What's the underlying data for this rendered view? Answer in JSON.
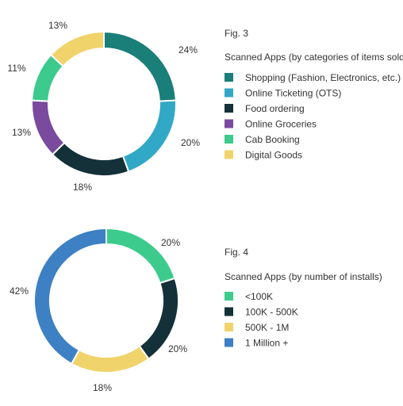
{
  "chart_data": [
    {
      "type": "pie",
      "figure_label": "Fig. 3",
      "title": "Scanned Apps (by categories of items sold)",
      "categories": [
        "Shopping (Fashion, Electronics, etc.)",
        "Online Ticketing (OTS)",
        "Food ordering",
        "Online Groceries",
        "Cab Booking",
        "Digital Goods"
      ],
      "values": [
        24,
        20,
        18,
        13,
        11,
        13
      ],
      "value_labels": [
        "24%",
        "20%",
        "18%",
        "13%",
        "11%",
        "13%"
      ],
      "colors": [
        "#1a7e79",
        "#32a8c7",
        "#14313a",
        "#7a4a9e",
        "#3ccb8d",
        "#f0d36b"
      ],
      "donut": true,
      "legend_position": "right"
    },
    {
      "type": "pie",
      "figure_label": "Fig. 4",
      "title": "Scanned Apps (by number of installs)",
      "categories": [
        "<100K",
        "100K - 500K",
        "500K - 1M",
        "1 Million +"
      ],
      "values": [
        20,
        20,
        18,
        42
      ],
      "value_labels": [
        "20%",
        "20%",
        "18%",
        "42%"
      ],
      "colors": [
        "#3ccb8d",
        "#14313a",
        "#f0d36b",
        "#3d80c4"
      ],
      "donut": true,
      "legend_position": "right"
    }
  ]
}
